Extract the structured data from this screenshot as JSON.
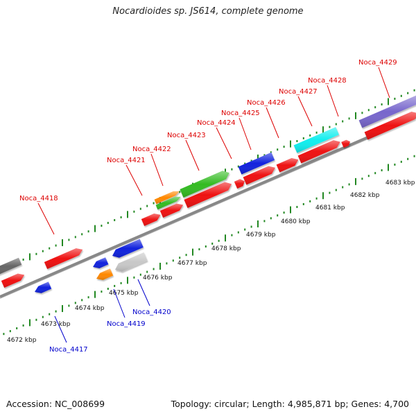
{
  "title": "Nocardioides sp. JS614, complete genome",
  "accession": "Accession: NC_008699",
  "summary": "Topology: circular; Length: 4,985,871 bp; Genes: 4,700",
  "colors": {
    "forward_label": "#dd0000",
    "reverse_label": "#0000cc",
    "red_gene": "#ee1111",
    "blue_gene": "#1122dd",
    "green_gene": "#33bb22",
    "orange_gene": "#ff8800",
    "gray_gene": "#c8c8c8",
    "dark_gray_gene": "#666666",
    "cyan_gene": "#11eeee",
    "purple_gene": "#7766cc",
    "backbone": "#888888",
    "tick": "#228822"
  },
  "map": {
    "tick_labels": [
      "4672 kbp",
      "4673 kbp",
      "4674 kbp",
      "4675 kbp",
      "4676 kbp",
      "4677 kbp",
      "4678 kbp",
      "4679 kbp",
      "4680 kbp",
      "4681 kbp",
      "4682 kbp",
      "4683 kbp"
    ],
    "forward_gene_labels": [
      "Noca_4418",
      "Noca_4421",
      "Noca_4422",
      "Noca_4423",
      "Noca_4424",
      "Noca_4425",
      "Noca_4426",
      "Noca_4427",
      "Noca_4428",
      "Noca_4429"
    ],
    "reverse_gene_labels": [
      "Noca_4417",
      "Noca_4419",
      "Noca_4420"
    ]
  }
}
